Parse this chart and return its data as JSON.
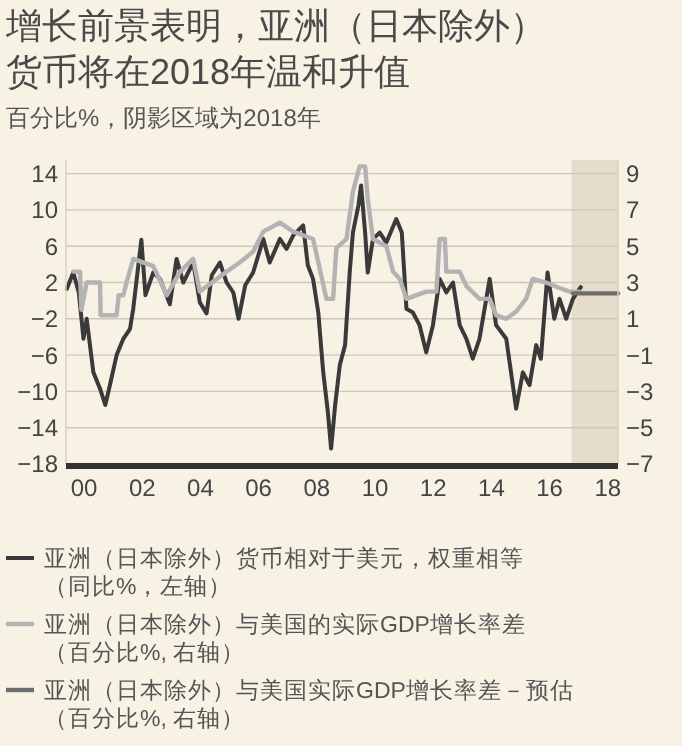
{
  "chart_data": {
    "type": "line",
    "title": "增长前景表明，亚洲（日本除外）货币将在2018年温和升值",
    "subtitle": "百分比%，阴影区域为2018年",
    "xlim": [
      1999.38,
      2018.35
    ],
    "xticks": [
      {
        "value": 2000,
        "label": "00"
      },
      {
        "value": 2002,
        "label": "02"
      },
      {
        "value": 2004,
        "label": "04"
      },
      {
        "value": 2006,
        "label": "06"
      },
      {
        "value": 2008,
        "label": "08"
      },
      {
        "value": 2010,
        "label": "10"
      },
      {
        "value": 2012,
        "label": "12"
      },
      {
        "value": 2014,
        "label": "14"
      },
      {
        "value": 2016,
        "label": "16"
      },
      {
        "value": 2018,
        "label": "18"
      }
    ],
    "ylim": [
      -18,
      15.5
    ],
    "yticks": [
      -18,
      -14,
      -10,
      -6,
      -2,
      2,
      6,
      10,
      14
    ],
    "y2lim": [
      -7,
      9.75
    ],
    "y2ticks": [
      -7,
      -5,
      -3,
      -1,
      1,
      3,
      5,
      7,
      9
    ],
    "grid": "y",
    "legend": "bottom",
    "line_style": "solid",
    "marker": "none",
    "bands": [
      {
        "axis": "x",
        "from": 2016.75,
        "to": 2018.35,
        "color": "#e6dccb"
      }
    ],
    "series": [
      {
        "name": "亚洲（日本除外）货币相对于美元，权重相等（同比%，左轴）",
        "color": "#3a3a3a",
        "axis": "y",
        "x": [
          1999.41,
          1999.63,
          1999.82,
          1999.98,
          2000.09,
          2000.32,
          2000.55,
          2000.73,
          2000.89,
          2001.12,
          2001.35,
          2001.58,
          2001.69,
          2001.97,
          2002.11,
          2002.38,
          2002.61,
          2002.95,
          2003.18,
          2003.41,
          2003.75,
          2003.98,
          2004.21,
          2004.39,
          2004.67,
          2004.9,
          2005.13,
          2005.31,
          2005.54,
          2005.81,
          2006.16,
          2006.38,
          2006.73,
          2006.96,
          2007.19,
          2007.53,
          2007.69,
          2007.87,
          2008.05,
          2008.22,
          2008.38,
          2008.49,
          2008.63,
          2008.79,
          2008.97,
          2009.13,
          2009.24,
          2009.43,
          2009.52,
          2009.66,
          2009.75,
          2009.93,
          2010.16,
          2010.39,
          2010.73,
          2010.92,
          2011.08,
          2011.3,
          2011.53,
          2011.76,
          2011.99,
          2012.22,
          2012.45,
          2012.68,
          2012.91,
          2013.14,
          2013.36,
          2013.59,
          2013.94,
          2014.16,
          2014.51,
          2014.85,
          2015.08,
          2015.31,
          2015.54,
          2015.7,
          2015.93,
          2016.16,
          2016.34,
          2016.57,
          2016.8,
          2017.07
        ],
        "values": [
          1.3,
          3.1,
          0.9,
          -4.2,
          -2,
          -7.9,
          -9.7,
          -11.5,
          -9.3,
          -6,
          -4.2,
          -3.1,
          -0.9,
          6.7,
          0.6,
          3.1,
          2.4,
          -0.4,
          4.6,
          2,
          4.2,
          -0.2,
          -1.4,
          2.8,
          4.2,
          2,
          0.9,
          -2,
          1.7,
          3.1,
          6.8,
          4.2,
          6.8,
          5.7,
          7.2,
          8.3,
          3.9,
          2.4,
          -1.3,
          -7.9,
          -12.3,
          -16.3,
          -11.5,
          -7.1,
          -4.9,
          3.1,
          7.5,
          10.5,
          12.7,
          7.5,
          3.1,
          6.8,
          7.5,
          6.4,
          9,
          7.5,
          -0.9,
          -1.3,
          -2.7,
          -5.7,
          -2.7,
          2.4,
          0.9,
          2,
          -2.7,
          -4.2,
          -6.4,
          -4.2,
          2.4,
          -2.7,
          -4.2,
          -11.9,
          -7.9,
          -9.3,
          -4.9,
          -6.4,
          3.1,
          -2,
          0.2,
          -2,
          0.2,
          1.5
        ]
      },
      {
        "name": "亚洲（日本除外）与美国的实际GDP增长率差（百分比%, 右轴）",
        "color": "#b3b3b3",
        "axis": "y2",
        "x": [
          1999.63,
          1999.86,
          1999.91,
          2000.09,
          2000.55,
          2000.57,
          2001.12,
          2001.19,
          2001.35,
          2001.46,
          2001.69,
          2002.38,
          2002.84,
          2003.3,
          2003.75,
          2003.98,
          2004.9,
          2005.35,
          2005.81,
          2006.16,
          2006.73,
          2007.19,
          2007.87,
          2008.33,
          2008.56,
          2008.67,
          2009.02,
          2009.24,
          2009.47,
          2009.66,
          2009.75,
          2009.93,
          2010.39,
          2010.62,
          2010.85,
          2011.08,
          2011.76,
          2012.11,
          2012.22,
          2012.4,
          2012.45,
          2012.91,
          2013.14,
          2013.59,
          2013.94,
          2014.16,
          2014.51,
          2014.85,
          2015.19,
          2015.42,
          2015.88,
          2016.34,
          2016.68,
          2017.02
        ],
        "values": [
          3.6,
          3.6,
          1.5,
          3.0,
          3.0,
          1.2,
          1.2,
          2.3,
          2.3,
          3.0,
          4.3,
          3.9,
          2.3,
          3.6,
          4.3,
          2.5,
          3.6,
          4.1,
          4.7,
          5.8,
          6.3,
          5.8,
          5.4,
          2.1,
          2.1,
          4.9,
          5.4,
          8.0,
          9.4,
          9.4,
          7.6,
          5.4,
          5.0,
          3.6,
          3.2,
          2.1,
          2.5,
          2.5,
          5.4,
          5.4,
          3.6,
          3.6,
          2.8,
          2.1,
          2.1,
          1.2,
          1.0,
          1.4,
          2.1,
          3.2,
          3.0,
          2.7,
          2.5,
          2.5
        ]
      },
      {
        "name": "亚洲（日本除外）与美国实际GDP增长率差－预估（百分比%, 右轴）",
        "color": "#6e6e6e",
        "axis": "y2",
        "x": [
          2016.8,
          2018.35
        ],
        "values": [
          2.4,
          2.4
        ]
      }
    ]
  }
}
